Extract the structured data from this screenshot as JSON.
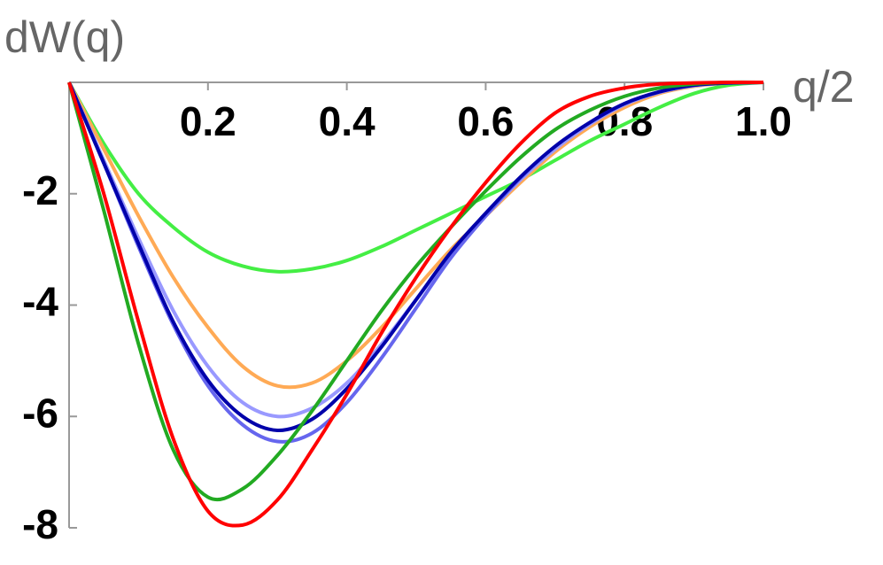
{
  "chart_data": {
    "type": "line",
    "ylabel": "dW(q)",
    "xlabel": "q/2",
    "xlim": [
      0,
      1
    ],
    "ylim": [
      -8,
      0
    ],
    "xticks": [
      0.2,
      0.4,
      0.6,
      0.8,
      {
        "value": 1,
        "label": "1.0"
      }
    ],
    "yticks": [
      -2,
      -4,
      -6,
      -8
    ],
    "x": [
      0,
      0.05,
      0.1,
      0.15,
      0.2,
      0.25,
      0.3,
      0.35,
      0.4,
      0.45,
      0.5,
      0.55,
      0.6,
      0.65,
      0.7,
      0.75,
      0.8,
      0.85,
      0.9,
      0.95,
      1
    ],
    "series": [
      {
        "color": "#44ee44",
        "values": [
          0,
          -1.1,
          -2.0,
          -2.6,
          -3.05,
          -3.3,
          -3.4,
          -3.35,
          -3.2,
          -2.95,
          -2.65,
          -2.35,
          -2.05,
          -1.75,
          -1.4,
          -1.05,
          -0.75,
          -0.45,
          -0.2,
          -0.05,
          0
        ]
      },
      {
        "color": "#ffaa55",
        "values": [
          0,
          -1.2,
          -2.4,
          -3.5,
          -4.4,
          -5.1,
          -5.45,
          -5.4,
          -5.0,
          -4.4,
          -3.7,
          -3.0,
          -2.4,
          -1.8,
          -1.25,
          -0.8,
          -0.45,
          -0.2,
          -0.07,
          -0.01,
          0
        ]
      },
      {
        "color": "#9999ff",
        "values": [
          0,
          -1.4,
          -2.8,
          -4.1,
          -5.1,
          -5.75,
          -6.0,
          -5.85,
          -5.4,
          -4.7,
          -3.9,
          -3.1,
          -2.4,
          -1.75,
          -1.2,
          -0.75,
          -0.4,
          -0.18,
          -0.06,
          -0.01,
          0
        ]
      },
      {
        "color": "#6666ee",
        "values": [
          0,
          -1.45,
          -2.95,
          -4.35,
          -5.45,
          -6.15,
          -6.45,
          -6.3,
          -5.75,
          -4.95,
          -4.05,
          -3.15,
          -2.4,
          -1.72,
          -1.15,
          -0.72,
          -0.38,
          -0.17,
          -0.05,
          -0.01,
          0
        ]
      },
      {
        "color": "#0000aa",
        "values": [
          0,
          -1.45,
          -2.9,
          -4.3,
          -5.35,
          -6.0,
          -6.25,
          -6.05,
          -5.5,
          -4.75,
          -3.9,
          -3.05,
          -2.35,
          -1.7,
          -1.15,
          -0.72,
          -0.38,
          -0.17,
          -0.05,
          -0.01,
          0
        ]
      },
      {
        "color": "#22aa22",
        "values": [
          0,
          -2.3,
          -4.7,
          -6.6,
          -7.45,
          -7.3,
          -6.7,
          -5.9,
          -5.0,
          -4.1,
          -3.3,
          -2.6,
          -1.95,
          -1.35,
          -0.85,
          -0.5,
          -0.25,
          -0.1,
          -0.03,
          0,
          0
        ]
      },
      {
        "color": "#ff0000",
        "values": [
          0,
          -2.0,
          -4.3,
          -6.4,
          -7.7,
          -7.95,
          -7.5,
          -6.6,
          -5.6,
          -4.5,
          -3.5,
          -2.6,
          -1.8,
          -1.1,
          -0.55,
          -0.25,
          -0.1,
          -0.03,
          -0.01,
          0,
          0
        ]
      }
    ]
  }
}
